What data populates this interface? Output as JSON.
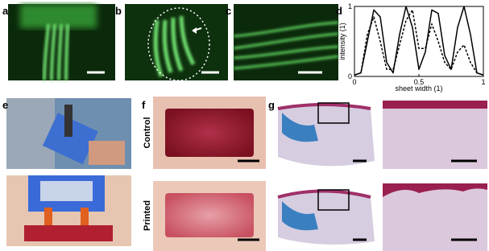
{
  "panel_labels": [
    "a",
    "b",
    "c",
    "d",
    "e",
    "f",
    "g"
  ],
  "row_labels": [
    "Control",
    "Printed"
  ],
  "chart_data": {
    "type": "line",
    "xlabel": "sheet width (1)",
    "ylabel": "intensity (1)",
    "x": [
      0,
      0.05,
      0.1,
      0.15,
      0.2,
      0.25,
      0.3,
      0.35,
      0.4,
      0.45,
      0.5,
      0.55,
      0.6,
      0.65,
      0.7,
      0.75,
      0.8,
      0.85,
      0.9,
      0.95,
      1
    ],
    "series": [
      {
        "color": "#000000",
        "dashed": false,
        "values": [
          0.02,
          0.05,
          0.5,
          0.95,
          0.85,
          0.2,
          0.05,
          0.6,
          1.0,
          0.7,
          0.1,
          0.35,
          0.95,
          0.9,
          0.3,
          0.1,
          0.7,
          1.0,
          0.6,
          0.05,
          0.02
        ]
      },
      {
        "color": "#000000",
        "dashed": true,
        "values": [
          0.02,
          0.05,
          0.6,
          0.85,
          0.5,
          0.1,
          0.1,
          0.45,
          0.8,
          0.95,
          0.4,
          0.4,
          0.75,
          0.5,
          0.2,
          0.1,
          0.35,
          0.45,
          0.2,
          0.05,
          0.02
        ]
      }
    ],
    "xlim": [
      0,
      1
    ],
    "ylim": [
      0,
      1
    ],
    "xticks": [
      0,
      0.5,
      1
    ],
    "yticks": [
      0,
      1
    ]
  }
}
